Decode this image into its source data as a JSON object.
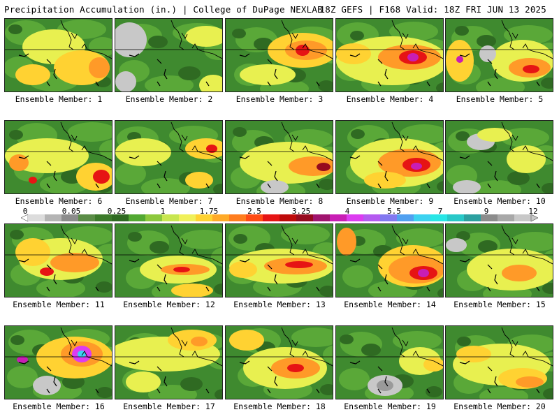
{
  "header": {
    "left": "Precipitation Accumulation (in.) | College of DuPage NEXLAB",
    "right": "18Z GEFS | F168 Valid: 18Z FRI JUN 13 2025"
  },
  "member_label_prefix": "Ensemble Member: ",
  "members": [
    "1",
    "2",
    "3",
    "4",
    "5",
    "6",
    "7",
    "8",
    "9",
    "10",
    "11",
    "12",
    "13",
    "14",
    "15",
    "16",
    "17",
    "18",
    "19",
    "20"
  ],
  "colorbar": {
    "tick_labels": [
      "0",
      "0.05",
      "0.25",
      "1",
      "1.75",
      "2.5",
      "3.25",
      "4",
      "5.5",
      "7",
      "9",
      "12"
    ],
    "colors": [
      "#dcdcdc",
      "#b4b4b4",
      "#8c8c8c",
      "#5a8c46",
      "#3c7a2a",
      "#2f6a22",
      "#52a832",
      "#8cc83c",
      "#c8e650",
      "#f0f05a",
      "#ffd232",
      "#ffaa28",
      "#ff7d1e",
      "#ff4b14",
      "#e61414",
      "#be0a0a",
      "#960a1e",
      "#a0146e",
      "#c81eb4",
      "#dc3cf0",
      "#b45af0",
      "#8278f0",
      "#50a0f0",
      "#3cd2f0",
      "#28e6e6",
      "#28c8c8",
      "#2ca0a0",
      "#8c8c8c",
      "#a8a8a8",
      "#c8c8c8"
    ]
  },
  "palette": {
    "gray_light": "#c8c8c8",
    "gray": "#9a9a9a",
    "green_dark": "#2f6a22",
    "green": "#3f8a2f",
    "green_mid": "#5aa838",
    "green_light": "#8cc83c",
    "yellow": "#e8f050",
    "gold": "#ffd232",
    "orange": "#ff9a28",
    "red": "#e61414",
    "maroon": "#960a1e",
    "magenta": "#c81eb4",
    "violet": "#dc3cf0",
    "cyan": "#3cd2f0"
  }
}
